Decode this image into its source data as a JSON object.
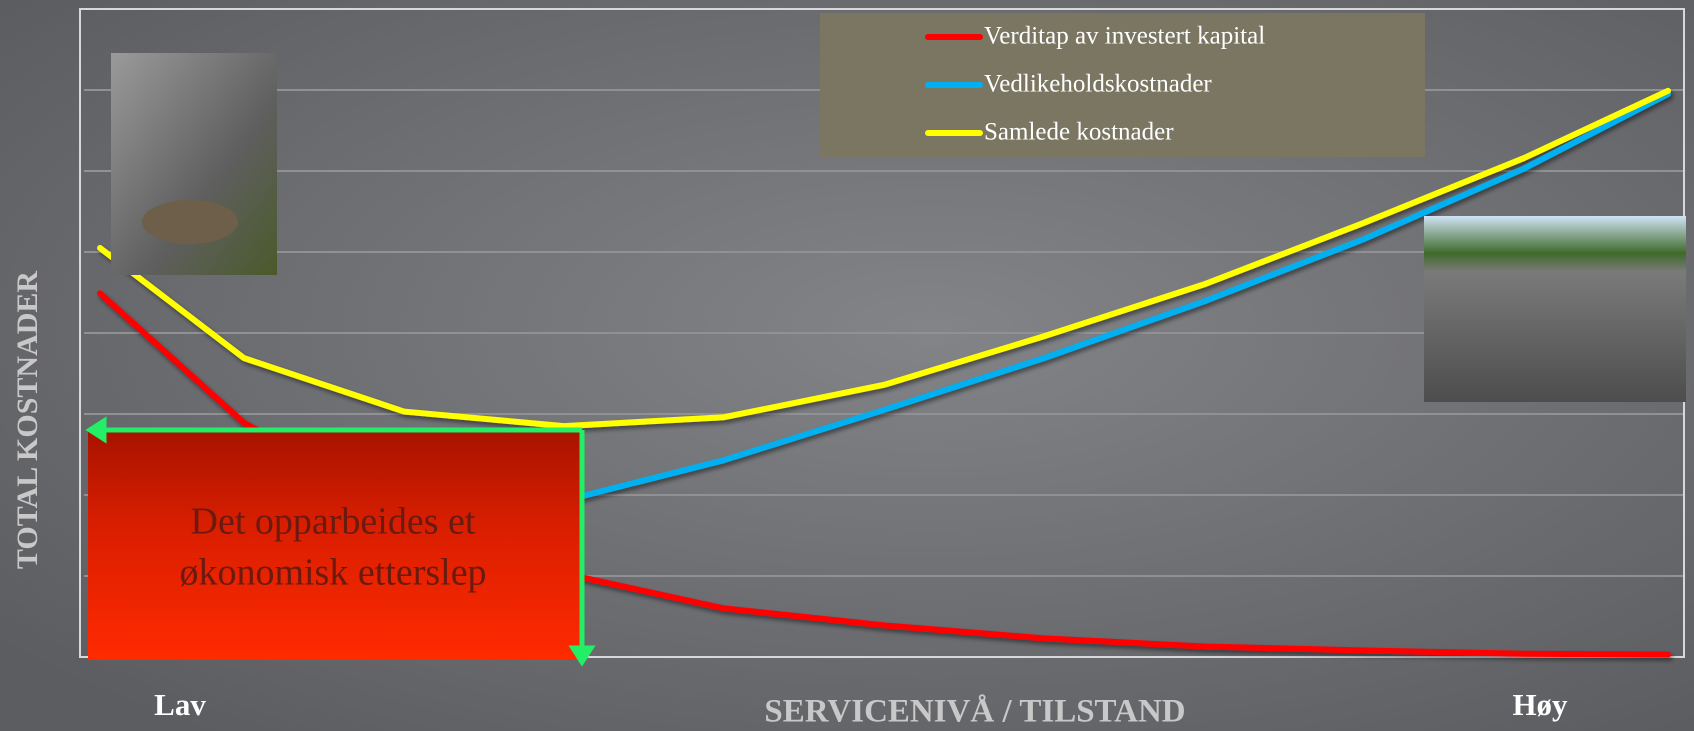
{
  "chart_data": {
    "type": "line",
    "xlabel": "SERVICENIVÅ / TILSTAND",
    "ylabel": "TOTAL KOSTNADER",
    "x": [
      0.1,
      1,
      2,
      3,
      4,
      5,
      6,
      7,
      8,
      9,
      9.9
    ],
    "xlim": [
      0,
      10
    ],
    "xticks": [
      {
        "value": 0.6,
        "label": "Lav"
      },
      {
        "value": 9.1,
        "label": "Høy"
      }
    ],
    "ylim": [
      0,
      8
    ],
    "yticks": [
      0,
      1,
      2,
      3,
      4,
      5,
      6,
      7,
      8
    ],
    "grid": true,
    "series": [
      {
        "name": "Verditap av investert kapital",
        "color": "#ff0000",
        "values": [
          4.49,
          2.89,
          1.83,
          1.03,
          0.6,
          0.39,
          0.23,
          0.13,
          0.08,
          0.04,
          0.03
        ]
      },
      {
        "name": "Vedlikeholdskostnader",
        "color": "#00b0f0",
        "values": [
          0.55,
          0.8,
          1.2,
          1.93,
          2.43,
          3.05,
          3.69,
          4.39,
          5.16,
          6.03,
          6.95
        ]
      },
      {
        "name": "Samlede kostnader",
        "color": "#ffff00",
        "values": [
          5.05,
          3.69,
          3.03,
          2.85,
          2.96,
          3.36,
          3.96,
          4.6,
          5.36,
          6.16,
          6.99
        ]
      }
    ],
    "annotation": "Det opparbeides et økonomisk etterslep"
  }
}
